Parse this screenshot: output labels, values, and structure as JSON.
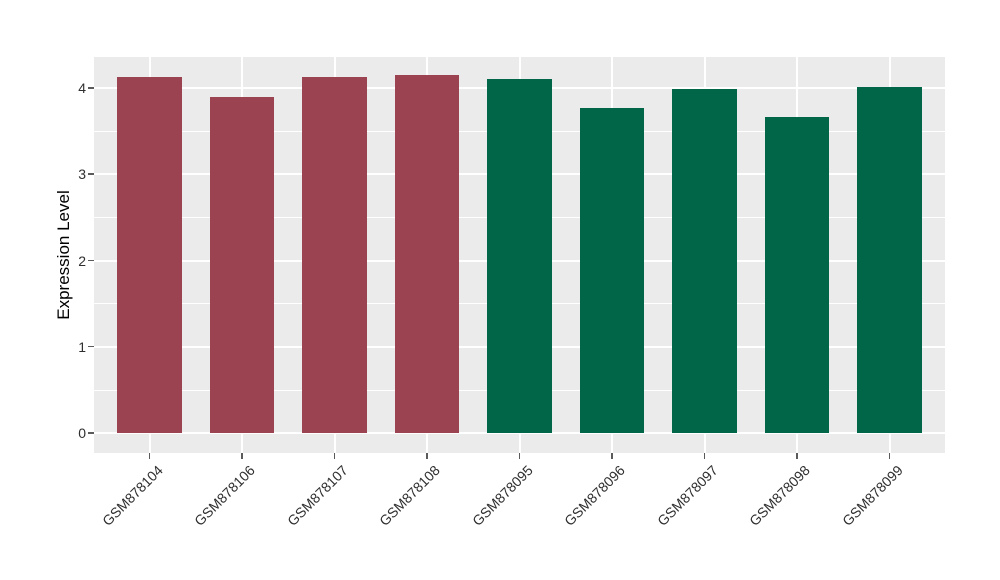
{
  "chart_data": {
    "type": "bar",
    "title": "",
    "xlabel": "",
    "ylabel": "Expression Level",
    "categories": [
      "GSM878104",
      "GSM878106",
      "GSM878107",
      "GSM878108",
      "GSM878095",
      "GSM878096",
      "GSM878097",
      "GSM878098",
      "GSM878099"
    ],
    "values": [
      4.13,
      3.9,
      4.13,
      4.15,
      4.1,
      3.77,
      3.99,
      3.66,
      4.01
    ],
    "groups": [
      "group1",
      "group1",
      "group1",
      "group1",
      "group2",
      "group2",
      "group2",
      "group2",
      "group2"
    ],
    "group_colors": {
      "group1": "#9B4351",
      "group2": "#006647"
    },
    "yticks": [
      0,
      1,
      2,
      3,
      4
    ],
    "minor_yticks": [
      0.5,
      1.5,
      2.5,
      3.5
    ],
    "ylim": [
      -0.23,
      4.36
    ],
    "grid": "on",
    "legend": "none",
    "panel_bg": "#EBEBEB",
    "grid_color": "#FFFFFF",
    "bar_width_frac": 0.7,
    "x_label_angle": -45
  }
}
